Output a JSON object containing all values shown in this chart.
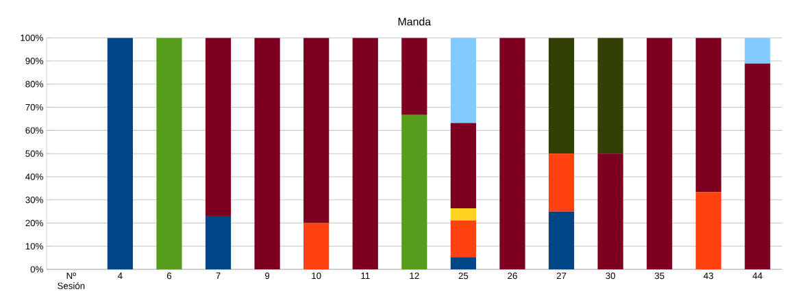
{
  "chart_data": {
    "type": "bar",
    "stacked": true,
    "title": "Manda",
    "categories": [
      "Nº Sesión",
      "4",
      "6",
      "7",
      "9",
      "10",
      "11",
      "12",
      "25",
      "26",
      "27",
      "30",
      "35",
      "43",
      "44"
    ],
    "series": [
      {
        "color": "#004586",
        "values": [
          null,
          100,
          null,
          23.1,
          null,
          null,
          null,
          null,
          5.3,
          null,
          25,
          null,
          null,
          null,
          null
        ]
      },
      {
        "color": "#ff420e",
        "values": [
          null,
          null,
          null,
          null,
          null,
          20,
          null,
          null,
          15.8,
          null,
          25,
          null,
          null,
          33.3,
          null
        ]
      },
      {
        "color": "#ffd320",
        "values": [
          null,
          null,
          null,
          null,
          null,
          null,
          null,
          null,
          5.3,
          null,
          null,
          null,
          null,
          null,
          null
        ]
      },
      {
        "color": "#579d1c",
        "values": [
          null,
          null,
          100,
          null,
          null,
          null,
          null,
          66.7,
          null,
          null,
          null,
          null,
          null,
          null,
          null
        ]
      },
      {
        "color": "#7e0021",
        "values": [
          null,
          null,
          null,
          76.9,
          100,
          80,
          100,
          33.3,
          36.8,
          100,
          null,
          50,
          100,
          66.7,
          88.9
        ]
      },
      {
        "color": "#314004",
        "values": [
          null,
          null,
          null,
          null,
          null,
          null,
          null,
          null,
          null,
          null,
          50,
          50,
          null,
          null,
          null
        ]
      },
      {
        "color": "#83caff",
        "values": [
          null,
          null,
          null,
          null,
          null,
          null,
          null,
          null,
          36.8,
          null,
          null,
          null,
          null,
          null,
          11.1
        ]
      }
    ],
    "ylim": [
      0,
      100
    ],
    "yticks": [
      {
        "value": 0,
        "label": "0%"
      },
      {
        "value": 10,
        "label": "10%"
      },
      {
        "value": 20,
        "label": "20%"
      },
      {
        "value": 30,
        "label": "30%"
      },
      {
        "value": 40,
        "label": "40%"
      },
      {
        "value": 50,
        "label": "50%"
      },
      {
        "value": 60,
        "label": "60%"
      },
      {
        "value": 70,
        "label": "70%"
      },
      {
        "value": 80,
        "label": "80%"
      },
      {
        "value": 90,
        "label": "90%"
      },
      {
        "value": 100,
        "label": "100%"
      }
    ],
    "grid": "y"
  }
}
